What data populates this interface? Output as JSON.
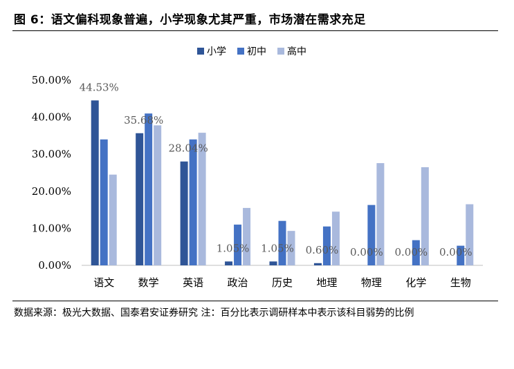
{
  "title": "图 6：语文偏科现象普遍，小学现象尤其严重，市场潜在需求充足",
  "source": "数据来源：极光大数据、国泰君安证券研究  注：百分比表示调研样本中表示该科目弱势的比例",
  "chart_data": {
    "type": "bar",
    "categories": [
      "语文",
      "数学",
      "英语",
      "政治",
      "历史",
      "地理",
      "物理",
      "化学",
      "生物"
    ],
    "series": [
      {
        "name": "小学",
        "color": "#2f5597",
        "values": [
          44.53,
          35.68,
          28.04,
          1.05,
          1.05,
          0.6,
          0.0,
          0.0,
          0.0
        ]
      },
      {
        "name": "初中",
        "color": "#4472c4",
        "values": [
          34.0,
          41.0,
          34.0,
          11.0,
          12.0,
          10.5,
          16.3,
          6.8,
          5.3
        ]
      },
      {
        "name": "高中",
        "color": "#a9b9dd",
        "values": [
          24.5,
          37.8,
          35.8,
          15.5,
          9.3,
          14.5,
          27.6,
          26.5,
          16.5
        ]
      }
    ],
    "data_labels": [
      "44.53%",
      "35.68%",
      "28.04%",
      "1.05%",
      "1.05%",
      "0.60%",
      "0.00%",
      "0.00%",
      "0.00%"
    ],
    "y_ticks": [
      "0.00%",
      "10.00%",
      "20.00%",
      "30.00%",
      "40.00%",
      "50.00%"
    ],
    "ylim": [
      0,
      50
    ],
    "legend_position": "top-center",
    "grid": false
  }
}
